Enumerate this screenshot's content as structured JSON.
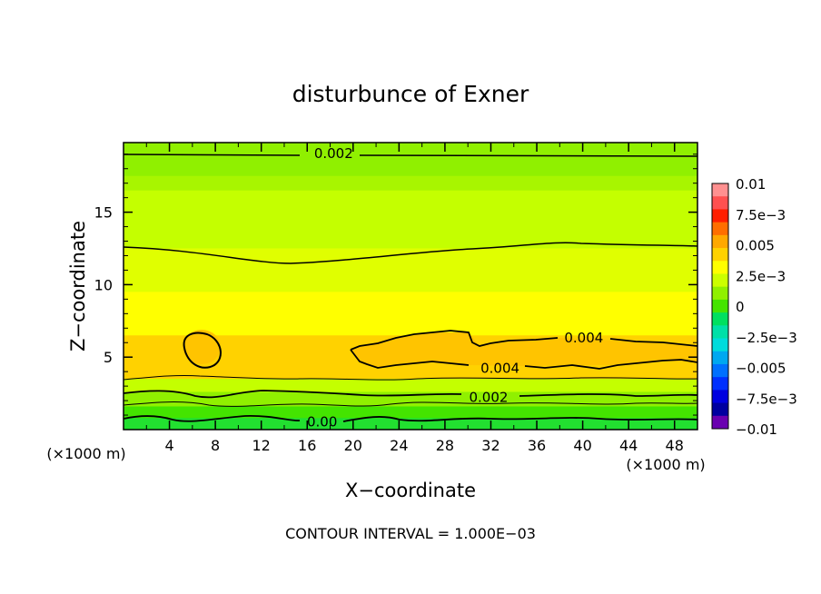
{
  "chart_data": {
    "type": "heatmap",
    "title": "disturbunce of Exner",
    "xlabel": "X−coordinate",
    "ylabel": "Z−coordinate",
    "x_unit": "(×1000 m)",
    "y_unit": "(×1000 m)",
    "footer": "CONTOUR INTERVAL = 1.000E−03",
    "xlim": [
      0,
      50
    ],
    "ylim": [
      0,
      19.8
    ],
    "x_ticks": [
      4,
      8,
      12,
      16,
      20,
      24,
      28,
      32,
      36,
      40,
      44,
      48
    ],
    "y_ticks": [
      5,
      10,
      15
    ],
    "colorbar": {
      "min": -0.01,
      "max": 0.01,
      "labels": [
        "0.01",
        "7.5e−3",
        "0.005",
        "2.5e−3",
        "0",
        "−2.5e−3",
        "−0.005",
        "−7.5e−3",
        "−0.01"
      ],
      "colors": [
        "#ff9090",
        "#ff5050",
        "#ff1e00",
        "#ff6e00",
        "#ffa800",
        "#ffd200",
        "#ffff00",
        "#ccff00",
        "#90f000",
        "#44e400",
        "#00e060",
        "#00e0a8",
        "#00dcdc",
        "#00a8f0",
        "#0070ff",
        "#0030ff",
        "#0000e0",
        "#0000a0",
        "#6a00b0"
      ]
    },
    "contour_labels": [
      {
        "text": "0.002",
        "x": 18.3,
        "z": 19.1
      },
      {
        "text": "0.004",
        "x": 40.1,
        "z": 6.4
      },
      {
        "text": "0.004",
        "x": 32.8,
        "z": 4.3
      },
      {
        "text": "0.002",
        "x": 31.8,
        "z": 2.3
      },
      {
        "text": "0.00",
        "x": 17.3,
        "z": 0.6
      }
    ],
    "field_bands": [
      {
        "z_top": 19.8,
        "value": 0.0015,
        "color": "#90f000"
      },
      {
        "z_top": 17.5,
        "value": 0.002,
        "color": "#a8f500"
      },
      {
        "z_top": 16.5,
        "value": 0.0025,
        "color": "#c4ff00"
      },
      {
        "z_top": 12.5,
        "value": 0.003,
        "color": "#e0ff00"
      },
      {
        "z_top": 9.5,
        "value": 0.0035,
        "color": "#ffff00"
      },
      {
        "z_top": 6.5,
        "value": 0.004,
        "color": "#ffd200"
      },
      {
        "z_top": 3.5,
        "value": 0.0025,
        "color": "#c4ff00"
      },
      {
        "z_top": 2.6,
        "value": 0.0015,
        "color": "#90f000"
      },
      {
        "z_top": 1.6,
        "value": 0.0005,
        "color": "#44e400"
      },
      {
        "z_top": 0.8,
        "value": 0.0,
        "color": "#22e030"
      }
    ]
  }
}
